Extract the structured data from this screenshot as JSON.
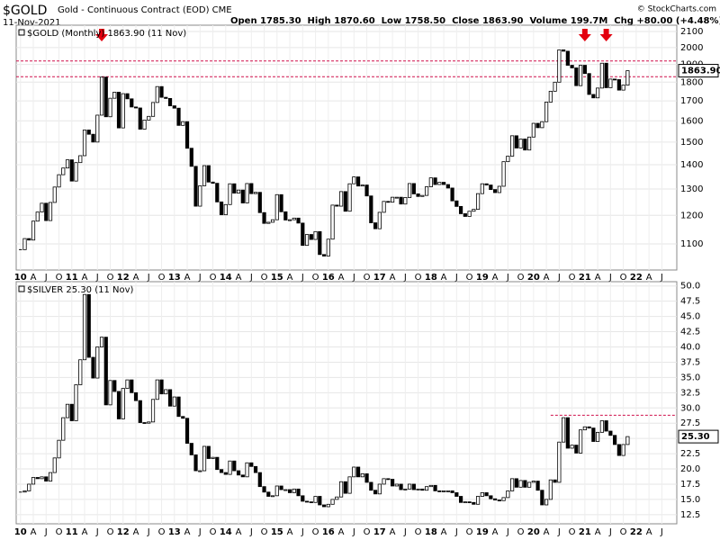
{
  "header": {
    "symbol": "$GOLD",
    "name": "Gold - Continuous Contract (EOD) CME",
    "date": "11-Nov-2021",
    "quote": "Open 1785.30  High 1870.60  Low 1758.50  Close 1863.90  Volume 199.7M  Chg +80.00 (+4.48%)",
    "credit": "© StockCharts.com"
  },
  "chart_data": [
    {
      "type": "candlestick",
      "title": "$GOLD (Monthly) 1863.90 (11 Nov)",
      "log": true,
      "grid": true,
      "last_label": "1863.90",
      "ref_lines": [
        1920,
        1830
      ],
      "ref_color": "#d0104c",
      "arrows": [
        19,
        132,
        137
      ],
      "ylim": [
        1016,
        2141
      ],
      "yticks": [
        1100,
        1200,
        1300,
        1400,
        1500,
        1600,
        1700,
        1800,
        1900,
        2000,
        2100
      ],
      "xlim": [
        -1,
        153.5
      ],
      "values": [
        1081,
        1118,
        1113,
        1179,
        1212,
        1245,
        1181,
        1248,
        1308,
        1358,
        1386,
        1421,
        1332,
        1409,
        1439,
        1556,
        1536,
        1500,
        1628,
        1828,
        1620,
        1714,
        1746,
        1566,
        1738,
        1711,
        1669,
        1664,
        1560,
        1604,
        1622,
        1692,
        1776,
        1719,
        1713,
        1675,
        1663,
        1578,
        1596,
        1472,
        1393,
        1234,
        1313,
        1396,
        1328,
        1323,
        1250,
        1202,
        1240,
        1321,
        1284,
        1296,
        1246,
        1322,
        1282,
        1287,
        1210,
        1171,
        1175,
        1184,
        1278,
        1213,
        1183,
        1184,
        1190,
        1172,
        1095,
        1132,
        1115,
        1142,
        1065,
        1060,
        1116,
        1238,
        1234,
        1290,
        1215,
        1321,
        1349,
        1312,
        1316,
        1273,
        1173,
        1152,
        1211,
        1252,
        1249,
        1268,
        1268,
        1242,
        1267,
        1322,
        1281,
        1271,
        1275,
        1309,
        1345,
        1318,
        1327,
        1318,
        1304,
        1254,
        1233,
        1206,
        1196,
        1215,
        1222,
        1282,
        1321,
        1316,
        1298,
        1286,
        1311,
        1413,
        1437,
        1529,
        1473,
        1514,
        1464,
        1523,
        1588,
        1567,
        1596,
        1694,
        1751,
        1800,
        1986,
        1978,
        1895,
        1880,
        1781,
        1895,
        1848,
        1734,
        1716,
        1768,
        1907,
        1770,
        1817,
        1814,
        1757,
        1784,
        1864
      ]
    },
    {
      "type": "candlestick",
      "title": "$SILVER 25.30 (11 Nov)",
      "log": false,
      "grid": true,
      "last_label": "25.30",
      "ref_lines": [
        28.8
      ],
      "ref_start": 124,
      "ref_color": "#d0104c",
      "ylim": [
        11,
        50.7
      ],
      "yticks": [
        {
          "value": 12.5,
          "label": "12.5"
        },
        {
          "value": 15,
          "label": "15.0"
        },
        {
          "value": 17.5,
          "label": "17.5"
        },
        {
          "value": 20,
          "label": "20.0"
        },
        {
          "value": 22.5,
          "label": "22.5"
        },
        {
          "value": 25,
          "label": "25.0"
        },
        {
          "value": 27.5,
          "label": "27.5"
        },
        {
          "value": 30,
          "label": "30.0"
        },
        {
          "value": 32.5,
          "label": "32.5"
        },
        {
          "value": 35,
          "label": "35.0"
        },
        {
          "value": 37.5,
          "label": "37.5"
        },
        {
          "value": 40,
          "label": "40.0"
        },
        {
          "value": 42.5,
          "label": "42.5"
        },
        {
          "value": 45,
          "label": "45.0"
        },
        {
          "value": 47.5,
          "label": "47.5"
        },
        {
          "value": 50,
          "label": "50.0"
        }
      ],
      "xlim": [
        -1,
        153.5
      ],
      "values": [
        16.2,
        16.4,
        17.5,
        18.6,
        18.4,
        18.7,
        18.0,
        19.4,
        21.8,
        24.7,
        28.4,
        30.6,
        27.9,
        33.8,
        37.9,
        48.6,
        38.3,
        34.9,
        40.0,
        41.6,
        30.5,
        34.5,
        32.7,
        28.2,
        33.2,
        34.6,
        32.5,
        31.2,
        27.6,
        27.5,
        27.7,
        31.4,
        34.6,
        32.3,
        33.0,
        30.3,
        31.8,
        28.6,
        28.3,
        24.2,
        22.3,
        19.7,
        19.7,
        23.7,
        21.7,
        21.9,
        19.9,
        19.4,
        19.1,
        21.3,
        19.7,
        19.0,
        18.7,
        21.0,
        20.4,
        19.4,
        17.1,
        16.2,
        15.5,
        15.6,
        17.2,
        16.6,
        16.6,
        16.1,
        16.7,
        15.6,
        14.7,
        14.6,
        14.5,
        15.5,
        14.1,
        13.8,
        14.2,
        15.0,
        15.4,
        17.9,
        16.0,
        18.7,
        20.3,
        18.7,
        19.2,
        17.8,
        16.5,
        15.9,
        17.5,
        18.4,
        18.3,
        17.2,
        17.5,
        16.6,
        16.7,
        17.5,
        16.6,
        16.7,
        16.5,
        17.1,
        17.3,
        16.4,
        16.3,
        16.4,
        16.4,
        16.1,
        15.5,
        14.5,
        14.6,
        14.5,
        14.2,
        15.5,
        16.1,
        15.6,
        15.1,
        14.9,
        14.8,
        15.3,
        16.4,
        18.4,
        17.0,
        18.1,
        17.0,
        17.8,
        18.0,
        16.5,
        14.1,
        15.0,
        18.2,
        17.8,
        24.4,
        28.4,
        23.4,
        23.9,
        22.6,
        26.4,
        26.9,
        26.7,
        24.5,
        26.0,
        27.9,
        26.2,
        25.5,
        24.0,
        22.2,
        24.0,
        25.3
      ]
    }
  ],
  "xticks": [
    {
      "value": 0,
      "label": "10"
    },
    {
      "value": 3,
      "label": "A"
    },
    {
      "value": 6,
      "label": "J"
    },
    {
      "value": 9,
      "label": "O"
    },
    {
      "value": 12,
      "label": "11"
    },
    {
      "value": 15,
      "label": "A"
    },
    {
      "value": 18,
      "label": "J"
    },
    {
      "value": 21,
      "label": "O"
    },
    {
      "value": 24,
      "label": "12"
    },
    {
      "value": 27,
      "label": "A"
    },
    {
      "value": 30,
      "label": "J"
    },
    {
      "value": 33,
      "label": "O"
    },
    {
      "value": 36,
      "label": "13"
    },
    {
      "value": 39,
      "label": "A"
    },
    {
      "value": 42,
      "label": "J"
    },
    {
      "value": 45,
      "label": "O"
    },
    {
      "value": 48,
      "label": "14"
    },
    {
      "value": 51,
      "label": "A"
    },
    {
      "value": 54,
      "label": "J"
    },
    {
      "value": 57,
      "label": "O"
    },
    {
      "value": 60,
      "label": "15"
    },
    {
      "value": 63,
      "label": "A"
    },
    {
      "value": 66,
      "label": "J"
    },
    {
      "value": 69,
      "label": "O"
    },
    {
      "value": 72,
      "label": "16"
    },
    {
      "value": 75,
      "label": "A"
    },
    {
      "value": 78,
      "label": "J"
    },
    {
      "value": 81,
      "label": "O"
    },
    {
      "value": 84,
      "label": "17"
    },
    {
      "value": 87,
      "label": "A"
    },
    {
      "value": 90,
      "label": "J"
    },
    {
      "value": 93,
      "label": "O"
    },
    {
      "value": 96,
      "label": "18"
    },
    {
      "value": 99,
      "label": "A"
    },
    {
      "value": 102,
      "label": "J"
    },
    {
      "value": 105,
      "label": "O"
    },
    {
      "value": 108,
      "label": "19"
    },
    {
      "value": 111,
      "label": "A"
    },
    {
      "value": 114,
      "label": "J"
    },
    {
      "value": 117,
      "label": "O"
    },
    {
      "value": 120,
      "label": "20"
    },
    {
      "value": 123,
      "label": "A"
    },
    {
      "value": 126,
      "label": "J"
    },
    {
      "value": 129,
      "label": "O"
    },
    {
      "value": 132,
      "label": "21"
    },
    {
      "value": 135,
      "label": "A"
    },
    {
      "value": 138,
      "label": "J"
    },
    {
      "value": 141,
      "label": "O"
    },
    {
      "value": 144,
      "label": "22"
    },
    {
      "value": 147,
      "label": "A"
    },
    {
      "value": 150,
      "label": "J"
    }
  ]
}
